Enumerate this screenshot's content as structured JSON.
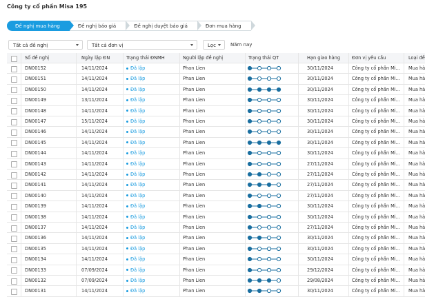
{
  "header": {
    "title": "Công ty cổ phần Misa 195"
  },
  "tabs": [
    "Đề nghị mua hàng",
    "Đề nghị báo giá",
    "Đề nghị duyệt báo giá",
    "Đơn mua hàng"
  ],
  "filters": {
    "proposal": "Tất cả đề nghị",
    "unit": "Tất cả đơn vị",
    "filter": "Lọc",
    "period": "Năm nay"
  },
  "table": {
    "columns": [
      "Số đề nghị",
      "Ngày lập ĐN",
      "Trạng thái ĐNMH",
      "Người lập đề nghị",
      "Trạng thái QT",
      "Hạn giao hàng",
      "Đơn vị yêu cầu",
      "Loại đề"
    ],
    "rows": [
      {
        "id": "DN00152",
        "date": "14/11/2024",
        "status": "Đã lập",
        "creator": "Phan Lien",
        "progress": 1,
        "due": "30/11/2024",
        "unit": "Công ty cổ phần Mi...",
        "type": "Mua hà"
      },
      {
        "id": "DN00151",
        "date": "14/11/2024",
        "status": "Đã lập",
        "creator": "Phan Lien",
        "progress": 1,
        "due": "30/11/2024",
        "unit": "Công ty cổ phần Mi...",
        "type": "Mua hà"
      },
      {
        "id": "DN00150",
        "date": "14/11/2024",
        "status": "Đã lập",
        "creator": "Phan Lien",
        "progress": 4,
        "due": "30/11/2024",
        "unit": "Công ty cổ phần Mi...",
        "type": "Mua hà"
      },
      {
        "id": "DN00149",
        "date": "13/11/2024",
        "status": "Đã lập",
        "creator": "Phan Lien",
        "progress": 1,
        "due": "30/11/2024",
        "unit": "Công ty cổ phần Mi...",
        "type": "Mua hà"
      },
      {
        "id": "DN00148",
        "date": "14/11/2024",
        "status": "Đã lập",
        "creator": "Phan Lien",
        "progress": 1,
        "due": "30/11/2024",
        "unit": "Công ty cổ phần Mi...",
        "type": "Mua hà"
      },
      {
        "id": "DN00147",
        "date": "15/11/2024",
        "status": "Đã lập",
        "creator": "Phan Lien",
        "progress": 1,
        "due": "30/11/2024",
        "unit": "Công ty cổ phần Mi...",
        "type": "Mua hà"
      },
      {
        "id": "DN00146",
        "date": "14/11/2024",
        "status": "Đã lập",
        "creator": "Phan Lien",
        "progress": 1,
        "due": "30/11/2024",
        "unit": "Công ty cổ phần Mi...",
        "type": "Mua hà"
      },
      {
        "id": "DN00145",
        "date": "14/11/2024",
        "status": "Đã lập",
        "creator": "Phan Lien",
        "progress": 4,
        "due": "30/11/2024",
        "unit": "Công ty cổ phần Mi...",
        "type": "Mua hà"
      },
      {
        "id": "DN00144",
        "date": "14/11/2024",
        "status": "Đã lập",
        "creator": "Phan Lien",
        "progress": 1,
        "due": "30/11/2024",
        "unit": "Công ty cổ phần Mi...",
        "type": "Mua hà"
      },
      {
        "id": "DN00143",
        "date": "14/11/2024",
        "status": "Đã lập",
        "creator": "Phan Lien",
        "progress": 1,
        "due": "27/11/2024",
        "unit": "Công ty cổ phần Mi...",
        "type": "Mua hà"
      },
      {
        "id": "DN00142",
        "date": "14/11/2024",
        "status": "Đã lập",
        "creator": "Phan Lien",
        "progress": 2,
        "due": "27/11/2024",
        "unit": "Công ty cổ phần Mi...",
        "type": "Mua hà"
      },
      {
        "id": "DN00141",
        "date": "14/11/2024",
        "status": "Đã lập",
        "creator": "Phan Lien",
        "progress": 3,
        "due": "27/11/2024",
        "unit": "Công ty cổ phần Mi...",
        "type": "Mua hà"
      },
      {
        "id": "DN00140",
        "date": "14/11/2024",
        "status": "Đã lập",
        "creator": "Phan Lien",
        "progress": 1,
        "due": "27/11/2024",
        "unit": "Công ty cổ phần Mi...",
        "type": "Mua hà"
      },
      {
        "id": "DN00139",
        "date": "14/11/2024",
        "status": "Đã lập",
        "creator": "Phan Lien",
        "progress": 2,
        "due": "30/11/2024",
        "unit": "Công ty cổ phần Mi...",
        "type": "Mua hà"
      },
      {
        "id": "DN00138",
        "date": "14/11/2024",
        "status": "Đã lập",
        "creator": "Phan Lien",
        "progress": 1,
        "due": "30/11/2024",
        "unit": "Công ty cổ phần Mi...",
        "type": "Mua hà"
      },
      {
        "id": "DN00137",
        "date": "14/11/2024",
        "status": "Đã lập",
        "creator": "Phan Lien",
        "progress": 1,
        "due": "27/11/2024",
        "unit": "Công ty cổ phần Mi...",
        "type": "Mua hà"
      },
      {
        "id": "DN00136",
        "date": "14/11/2024",
        "status": "Đã lập",
        "creator": "Phan Lien",
        "progress": 2,
        "due": "30/11/2024",
        "unit": "Công ty cổ phần Mi...",
        "type": "Mua hà"
      },
      {
        "id": "DN00135",
        "date": "14/11/2024",
        "status": "Đã lập",
        "creator": "Phan Lien",
        "progress": 1,
        "due": "30/11/2024",
        "unit": "Công ty cổ phần Mi...",
        "type": "Mua hà"
      },
      {
        "id": "DN00134",
        "date": "14/11/2024",
        "status": "Đã lập",
        "creator": "Phan Lien",
        "progress": 1,
        "due": "30/11/2024",
        "unit": "Công ty cổ phần Mi...",
        "type": "Mua hà"
      },
      {
        "id": "DN00133",
        "date": "07/09/2024",
        "status": "Đã lập",
        "creator": "Phan Lien",
        "progress": 1,
        "due": "29/12/2024",
        "unit": "Công ty cổ phần Mi...",
        "type": "Mua hà"
      },
      {
        "id": "DN00132",
        "date": "07/09/2024",
        "status": "Đã lập",
        "creator": "Phan Lien",
        "progress": 3,
        "due": "29/08/2024",
        "unit": "Công ty cổ phần Mi...",
        "type": "Mua hà"
      },
      {
        "id": "DN00131",
        "date": "14/11/2024",
        "status": "Đã lập",
        "creator": "Phan Lien",
        "progress": 2,
        "due": "30/11/2024",
        "unit": "Công ty cổ phần Mi...",
        "type": "Mua hà"
      }
    ]
  }
}
